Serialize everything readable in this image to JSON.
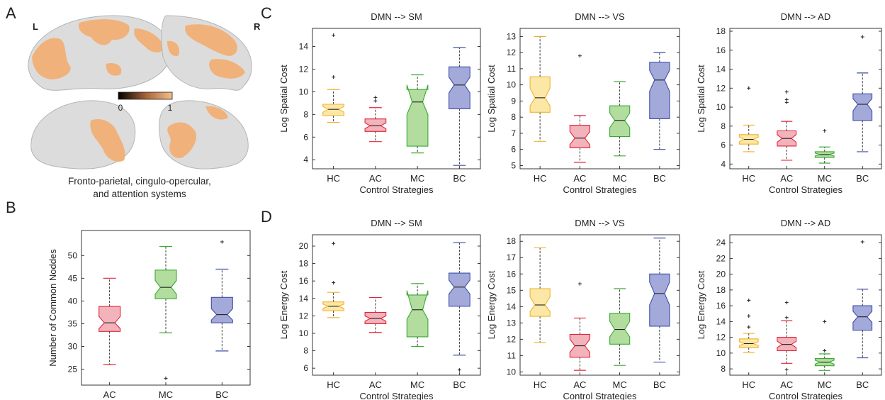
{
  "panels": {
    "a": "A",
    "b": "B",
    "c": "C",
    "d": "D"
  },
  "brain": {
    "left_label": "L",
    "right_label": "R",
    "colorbar_min": "0",
    "colorbar_max": "1",
    "caption_line1": "Fronto-parietal, cingulo-opercular,",
    "caption_line2": "and attention systems",
    "highlight_color": "#f0b27a",
    "cortex_color": "#dcdcdc"
  },
  "colors": {
    "HC": {
      "fill": "#fce8a6",
      "stroke": "#f1b12d"
    },
    "AC": {
      "fill": "#f2b3bb",
      "stroke": "#e3243b"
    },
    "MC": {
      "fill": "#b2dd9f",
      "stroke": "#3ba935"
    },
    "BC": {
      "fill": "#a3aad9",
      "stroke": "#3f4fa8"
    }
  },
  "chart_data": [
    {
      "id": "B",
      "type": "box",
      "title": "",
      "xlabel": "Control Strategies",
      "ylabel": "Number of Common Noddes",
      "ylim": [
        21.5,
        55.5
      ],
      "yticks": [
        25,
        30,
        35,
        40,
        45,
        50
      ],
      "categories": [
        "AC",
        "MC",
        "BC"
      ],
      "boxes": [
        {
          "q1": 33.3,
          "median": 35.2,
          "q3": 38.8,
          "notch_low": 33.9,
          "notch_high": 36.6,
          "whisker_low": 26,
          "whisker_high": 45,
          "outliers": []
        },
        {
          "q1": 40.5,
          "median": 43,
          "q3": 46.8,
          "notch_low": 41.5,
          "notch_high": 44.5,
          "whisker_low": 33,
          "whisker_high": 52,
          "outliers": [
            23
          ]
        },
        {
          "q1": 35.2,
          "median": 37,
          "q3": 40.8,
          "notch_low": 35.8,
          "notch_high": 38.3,
          "whisker_low": 29,
          "whisker_high": 47,
          "outliers": [
            53
          ]
        }
      ]
    },
    {
      "id": "C1",
      "type": "box",
      "title": "DMN --> SM",
      "xlabel": "Control Strategies",
      "ylabel": "Log Spatial Cost",
      "ylim": [
        3.2,
        15.6
      ],
      "yticks": [
        4,
        6,
        8,
        10,
        12,
        14
      ],
      "categories": [
        "HC",
        "AC",
        "MC",
        "BC"
      ],
      "boxes": [
        {
          "q1": 7.9,
          "median": 8.45,
          "q3": 8.9,
          "notch_low": 8.2,
          "notch_high": 8.7,
          "whisker_low": 7.3,
          "whisker_high": 10.2,
          "outliers": [
            11.3,
            15
          ]
        },
        {
          "q1": 6.5,
          "median": 7.0,
          "q3": 7.6,
          "notch_low": 6.75,
          "notch_high": 7.25,
          "whisker_low": 5.6,
          "whisker_high": 8.6,
          "outliers": [
            9.2,
            9.5
          ]
        },
        {
          "q1": 5.2,
          "median": 9.1,
          "q3": 10.2,
          "notch_low": 8.0,
          "notch_high": 10.6,
          "whisker_low": 4.6,
          "whisker_high": 11.5,
          "outliers": []
        },
        {
          "q1": 8.5,
          "median": 10.6,
          "q3": 12.2,
          "notch_low": 9.9,
          "notch_high": 11.3,
          "whisker_low": 3.5,
          "whisker_high": 13.9,
          "outliers": []
        }
      ]
    },
    {
      "id": "C2",
      "type": "box",
      "title": "DMN --> VS",
      "xlabel": "Control Strategies",
      "ylabel": "Log Spatial Cost",
      "ylim": [
        4.8,
        13.5
      ],
      "yticks": [
        5,
        6,
        7,
        8,
        9,
        10,
        11,
        12,
        13
      ],
      "categories": [
        "HC",
        "AC",
        "MC",
        "BC"
      ],
      "boxes": [
        {
          "q1": 8.3,
          "median": 9.2,
          "q3": 10.5,
          "notch_low": 8.7,
          "notch_high": 9.8,
          "whisker_low": 6.5,
          "whisker_high": 13,
          "outliers": []
        },
        {
          "q1": 6.1,
          "median": 6.7,
          "q3": 7.5,
          "notch_low": 6.3,
          "notch_high": 7.1,
          "whisker_low": 5.2,
          "whisker_high": 8.1,
          "outliers": [
            11.8
          ]
        },
        {
          "q1": 6.8,
          "median": 7.8,
          "q3": 8.7,
          "notch_low": 7.35,
          "notch_high": 8.25,
          "whisker_low": 5.6,
          "whisker_high": 10.2,
          "outliers": []
        },
        {
          "q1": 7.9,
          "median": 10.3,
          "q3": 11.4,
          "notch_low": 9.6,
          "notch_high": 10.9,
          "whisker_low": 6.0,
          "whisker_high": 12,
          "outliers": []
        }
      ]
    },
    {
      "id": "C3",
      "type": "box",
      "title": "DMN --> AD",
      "xlabel": "Control Strategies",
      "ylabel": "Log Spatial Cost",
      "ylim": [
        3.5,
        18.3
      ],
      "yticks": [
        4,
        6,
        8,
        10,
        12,
        14,
        16,
        18
      ],
      "categories": [
        "HC",
        "AC",
        "MC",
        "BC"
      ],
      "boxes": [
        {
          "q1": 6.1,
          "median": 6.6,
          "q3": 7.1,
          "notch_low": 6.35,
          "notch_high": 6.85,
          "whisker_low": 5.3,
          "whisker_high": 8.1,
          "outliers": [
            12
          ]
        },
        {
          "q1": 5.9,
          "median": 6.7,
          "q3": 7.5,
          "notch_low": 6.3,
          "notch_high": 7.1,
          "whisker_low": 4.4,
          "whisker_high": 8.5,
          "outliers": [
            10.5,
            10.8,
            11.6
          ]
        },
        {
          "q1": 4.7,
          "median": 5.0,
          "q3": 5.3,
          "notch_low": 4.85,
          "notch_high": 5.15,
          "whisker_low": 4.1,
          "whisker_high": 5.8,
          "outliers": [
            7.5
          ]
        },
        {
          "q1": 8.6,
          "median": 10.3,
          "q3": 11.4,
          "notch_low": 9.6,
          "notch_high": 10.9,
          "whisker_low": 5.3,
          "whisker_high": 13.6,
          "outliers": [
            17.4
          ]
        }
      ]
    },
    {
      "id": "D1",
      "type": "box",
      "title": "DMN --> SM",
      "xlabel": "Control Strategies",
      "ylabel": "Log Energy  Cost",
      "ylim": [
        5.2,
        21.3
      ],
      "yticks": [
        6,
        8,
        10,
        12,
        14,
        16,
        18,
        20
      ],
      "categories": [
        "HC",
        "AC",
        "MC",
        "BC"
      ],
      "boxes": [
        {
          "q1": 12.6,
          "median": 13.1,
          "q3": 13.6,
          "notch_low": 12.85,
          "notch_high": 13.35,
          "whisker_low": 11.8,
          "whisker_high": 14.7,
          "outliers": [
            15.8,
            20.3
          ]
        },
        {
          "q1": 11.1,
          "median": 11.7,
          "q3": 12.4,
          "notch_low": 11.4,
          "notch_high": 12.0,
          "whisker_low": 10.1,
          "whisker_high": 14.1,
          "outliers": []
        },
        {
          "q1": 9.6,
          "median": 12.7,
          "q3": 14.4,
          "notch_low": 11.6,
          "notch_high": 14.9,
          "whisker_low": 8.5,
          "whisker_high": 15.7,
          "outliers": []
        },
        {
          "q1": 13.1,
          "median": 15.3,
          "q3": 16.9,
          "notch_low": 14.5,
          "notch_high": 16.1,
          "whisker_low": 7.5,
          "whisker_high": 20.4,
          "outliers": [
            5.8
          ]
        }
      ]
    },
    {
      "id": "D2",
      "type": "box",
      "title": "DMN --> VS",
      "xlabel": "Control Strategies",
      "ylabel": "Log Energy  Cost",
      "ylim": [
        9.8,
        18.4
      ],
      "yticks": [
        10,
        11,
        12,
        13,
        14,
        15,
        16,
        17,
        18
      ],
      "categories": [
        "HC",
        "AC",
        "MC",
        "BC"
      ],
      "boxes": [
        {
          "q1": 13.4,
          "median": 14.1,
          "q3": 15.1,
          "notch_low": 13.7,
          "notch_high": 14.6,
          "whisker_low": 11.8,
          "whisker_high": 17.6,
          "outliers": []
        },
        {
          "q1": 10.9,
          "median": 11.6,
          "q3": 12.3,
          "notch_low": 11.2,
          "notch_high": 12.0,
          "whisker_low": 10.1,
          "whisker_high": 13.3,
          "outliers": [
            15.4
          ]
        },
        {
          "q1": 11.7,
          "median": 12.6,
          "q3": 13.6,
          "notch_low": 12.15,
          "notch_high": 13.1,
          "whisker_low": 10.4,
          "whisker_high": 15.1,
          "outliers": []
        },
        {
          "q1": 12.8,
          "median": 14.8,
          "q3": 16.0,
          "notch_low": 14.1,
          "notch_high": 15.5,
          "whisker_low": 10.6,
          "whisker_high": 18.2,
          "outliers": []
        }
      ]
    },
    {
      "id": "D3",
      "type": "box",
      "title": "DMN --> AD",
      "xlabel": "Control Strategies",
      "ylabel": "Log Energy  Cost",
      "ylim": [
        7.2,
        25
      ],
      "yticks": [
        8,
        10,
        12,
        14,
        16,
        18,
        20,
        22,
        24
      ],
      "categories": [
        "HC",
        "AC",
        "MC",
        "BC"
      ],
      "boxes": [
        {
          "q1": 10.7,
          "median": 11.2,
          "q3": 11.8,
          "notch_low": 10.95,
          "notch_high": 11.45,
          "whisker_low": 10.1,
          "whisker_high": 12.5,
          "outliers": [
            13.3,
            14.7,
            16.7
          ]
        },
        {
          "q1": 10.3,
          "median": 11.1,
          "q3": 12.0,
          "notch_low": 10.7,
          "notch_high": 11.5,
          "whisker_low": 8.7,
          "whisker_high": 14.1,
          "outliers": [
            7.9,
            14.5,
            16.4
          ]
        },
        {
          "q1": 8.4,
          "median": 8.85,
          "q3": 9.3,
          "notch_low": 8.6,
          "notch_high": 9.1,
          "whisker_low": 7.8,
          "whisker_high": 9.9,
          "outliers": [
            10.3,
            14.0
          ]
        },
        {
          "q1": 12.9,
          "median": 14.6,
          "q3": 16.0,
          "notch_low": 13.9,
          "notch_high": 15.3,
          "whisker_low": 9.4,
          "whisker_high": 18.1,
          "outliers": [
            24.1
          ]
        }
      ]
    }
  ]
}
